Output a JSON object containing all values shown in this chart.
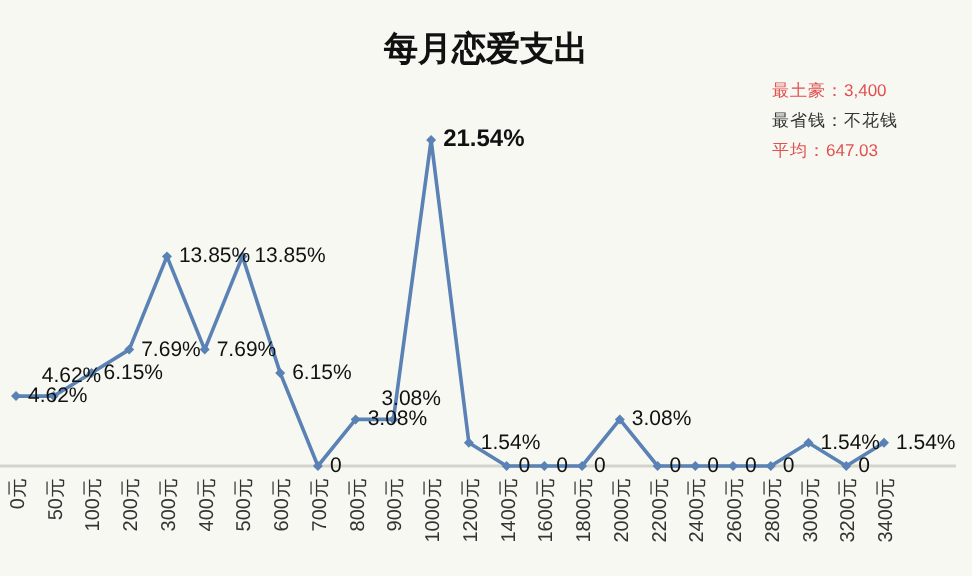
{
  "chart_data": {
    "type": "line",
    "title": "每月恋爱支出",
    "categories": [
      "0元",
      "50元",
      "100元",
      "200元",
      "300元",
      "400元",
      "500元",
      "600元",
      "700元",
      "800元",
      "900元",
      "1000元",
      "1200元",
      "1400元",
      "1600元",
      "1800元",
      "2000元",
      "2200元",
      "2400元",
      "2600元",
      "2800元",
      "3000元",
      "3200元",
      "3400元"
    ],
    "series": [
      {
        "color": "#5a82b4",
        "values": [
          4.62,
          4.62,
          6.15,
          7.69,
          13.85,
          7.69,
          13.85,
          6.15,
          0,
          3.08,
          3.08,
          21.54,
          1.54,
          0,
          0,
          0,
          3.08,
          0,
          0,
          0,
          0,
          1.54,
          0,
          1.54
        ],
        "value_labels": [
          "4.62%",
          "4.62%",
          "6.15%",
          "7.69%",
          "13.85%",
          "7.69%",
          "13.85%",
          "6.15%",
          "0",
          "3.08%",
          "3.08%",
          "21.54%",
          "1.54%",
          "0",
          "0",
          "0",
          "3.08%",
          "0",
          "0",
          "0",
          "0",
          "1.54%",
          "0",
          "1.54%"
        ]
      }
    ],
    "tick_labels": "x",
    "marker": "diamond",
    "line_style": "solid",
    "annotations": [
      "最土豪：3,400",
      "最省钱：不花钱",
      "平均：647.03"
    ]
  }
}
